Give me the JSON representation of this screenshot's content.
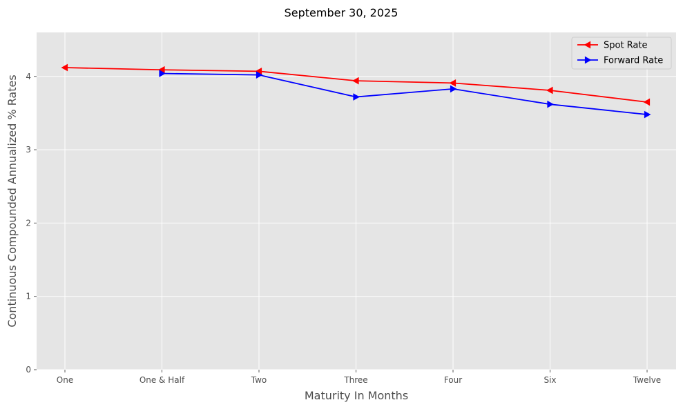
{
  "chart_data": {
    "type": "line",
    "title": "September 30, 2025",
    "xlabel": "Maturity In Months",
    "ylabel": "Continuous Compounded Annualized % Rates",
    "categories": [
      "One",
      "One & Half",
      "Two",
      "Three",
      "Four",
      "Six",
      "Twelve"
    ],
    "ylim": [
      0,
      4.6
    ],
    "yticks": [
      0,
      1,
      2,
      3,
      4
    ],
    "grid": true,
    "legend_position": "top-right",
    "background_color": "#e5e5e5",
    "grid_color": "#ffffff",
    "series": [
      {
        "name": "Spot Rate",
        "color": "#ff0000",
        "marker": "triangle-left",
        "values": [
          4.12,
          4.09,
          4.07,
          3.94,
          3.91,
          3.81,
          3.65
        ]
      },
      {
        "name": "Forward Rate",
        "color": "#0000ff",
        "marker": "triangle-right",
        "values": [
          null,
          4.04,
          4.02,
          3.72,
          3.83,
          3.62,
          3.48
        ]
      }
    ]
  }
}
